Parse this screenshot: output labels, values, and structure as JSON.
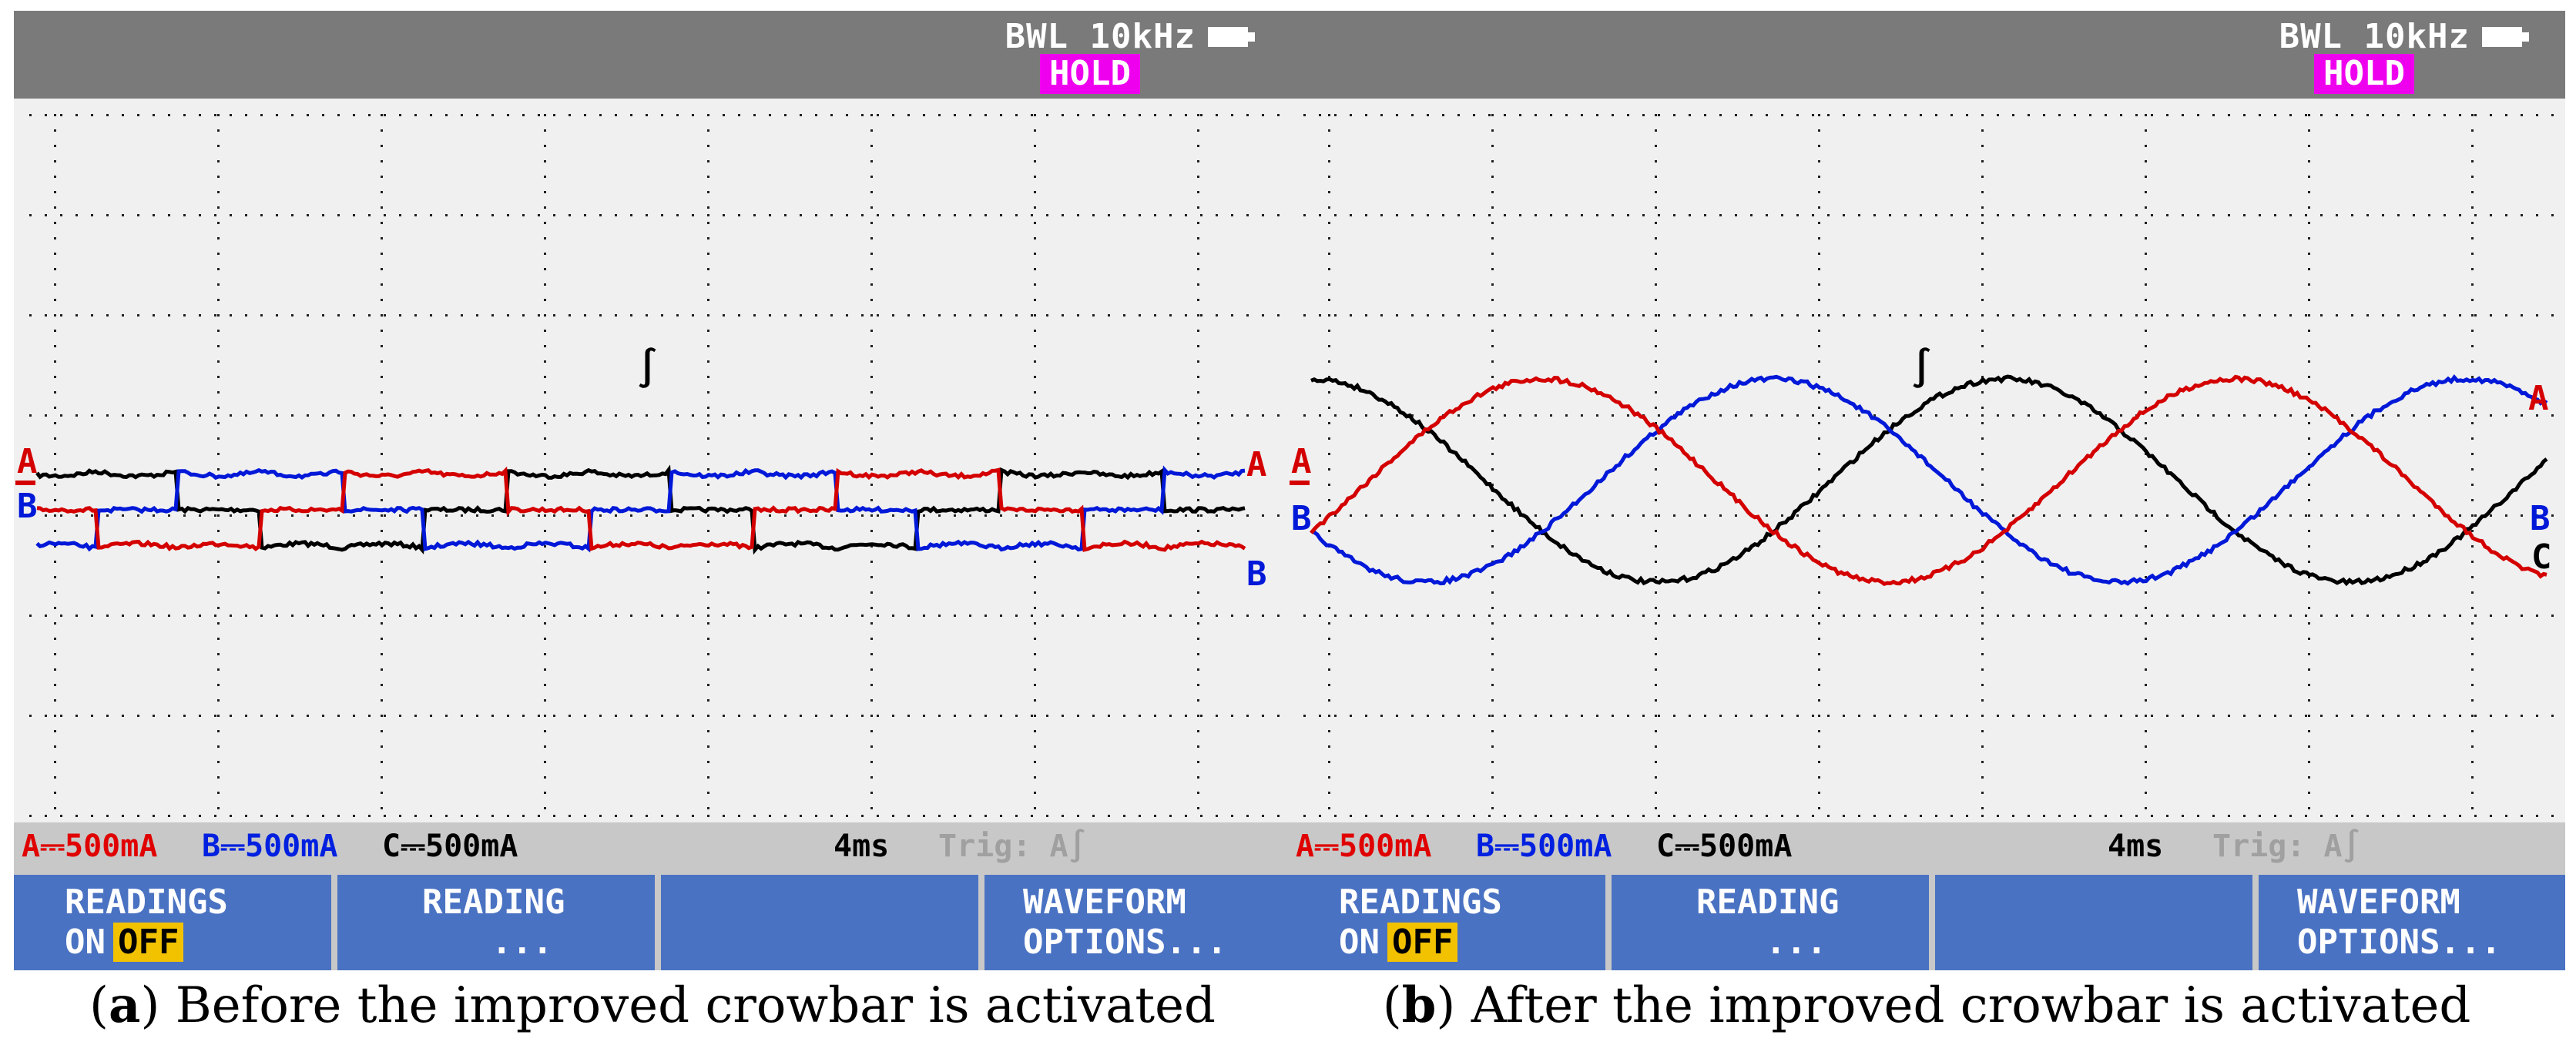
{
  "panels": [
    {
      "bwl": "BWL 10kHz",
      "hold": "HOLD",
      "status": {
        "a": "A⎓500mA",
        "b": "B⎓500mA",
        "c": "C⎓500mA",
        "time": "4ms",
        "trig": "Trig: A∫"
      },
      "keys": {
        "k1_line1": "READINGS",
        "k1_on": "ON",
        "k1_off": "OFF",
        "k2_line1": "READING",
        "k2_line2": "...",
        "k4_line1": "WAVEFORM",
        "k4_line2": "OPTIONS..."
      },
      "markers": {
        "left_a": "A",
        "left_b": "B",
        "right_a": "A",
        "right_b": "B",
        "trigger": "∫"
      },
      "caption_letter": "a",
      "caption_rest": " Before the improved crowbar is activated"
    },
    {
      "bwl": "BWL 10kHz",
      "hold": "HOLD",
      "status": {
        "a": "A⎓500mA",
        "b": "B⎓500mA",
        "c": "C⎓500mA",
        "time": "4ms",
        "trig": "Trig: A∫"
      },
      "keys": {
        "k1_line1": "READINGS",
        "k1_on": "ON",
        "k1_off": "OFF",
        "k2_line1": "READING",
        "k2_line2": "...",
        "k4_line1": "WAVEFORM",
        "k4_line2": "OPTIONS..."
      },
      "markers": {
        "left_a": "A",
        "left_b": "B",
        "right_a": "A",
        "right_b": "B",
        "right_c": "C",
        "trigger": "∫"
      },
      "caption_letter": "b",
      "caption_rest": " After the improved crowbar is activated"
    }
  ],
  "colors": {
    "phase_a": "#d40000",
    "phase_b": "#0018d8",
    "phase_c": "#000000",
    "header": "#7a7a7a",
    "hold_bg": "#ee00ee",
    "softkey": "#4a72c2",
    "off_bg": "#f2c200"
  }
}
